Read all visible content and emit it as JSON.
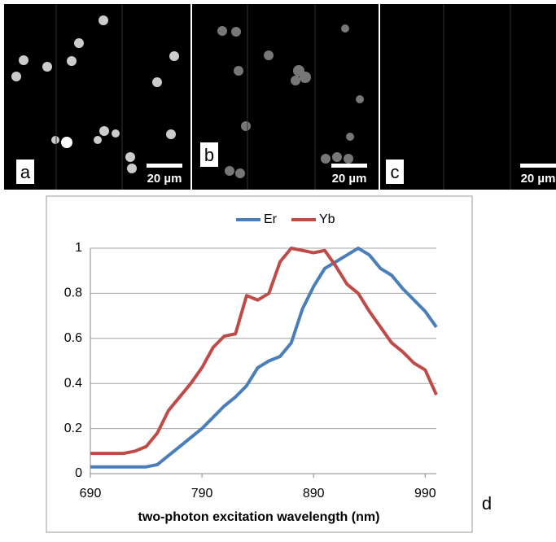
{
  "panels": [
    {
      "label": "a",
      "scale": "20 µm"
    },
    {
      "label": "b",
      "scale": "20 µm"
    },
    {
      "label": "c",
      "scale": "20 µm"
    }
  ],
  "chart_data": {
    "type": "line",
    "panel_label": "d",
    "x_label": "two-photon excitation wavelength (nm)",
    "x": [
      690,
      700,
      710,
      720,
      730,
      740,
      750,
      760,
      770,
      780,
      790,
      800,
      810,
      820,
      830,
      840,
      850,
      860,
      870,
      880,
      890,
      900,
      910,
      920,
      930,
      940,
      950,
      960,
      970,
      980,
      990,
      1000
    ],
    "series": [
      {
        "name": "Er",
        "color": "#4a7ebb",
        "values": [
          0.03,
          0.03,
          0.03,
          0.03,
          0.03,
          0.03,
          0.04,
          0.08,
          0.12,
          0.16,
          0.2,
          0.25,
          0.3,
          0.34,
          0.39,
          0.47,
          0.5,
          0.52,
          0.58,
          0.73,
          0.83,
          0.91,
          0.94,
          0.97,
          1.0,
          0.97,
          0.91,
          0.88,
          0.82,
          0.77,
          0.72,
          0.65
        ]
      },
      {
        "name": "Yb",
        "color": "#be4b48",
        "values": [
          0.09,
          0.09,
          0.09,
          0.09,
          0.1,
          0.12,
          0.18,
          0.28,
          0.34,
          0.4,
          0.47,
          0.56,
          0.61,
          0.62,
          0.79,
          0.77,
          0.8,
          0.94,
          1.0,
          0.99,
          0.98,
          0.99,
          0.92,
          0.84,
          0.8,
          0.72,
          0.65,
          0.58,
          0.54,
          0.49,
          0.46,
          0.35
        ]
      }
    ],
    "xlim": [
      690,
      1000
    ],
    "xticks": [
      690,
      790,
      890,
      990
    ],
    "ylim": [
      0,
      1
    ],
    "yticks": [
      0,
      0.2,
      0.4,
      0.6,
      0.8,
      1
    ],
    "grid": true,
    "legend": "top"
  }
}
